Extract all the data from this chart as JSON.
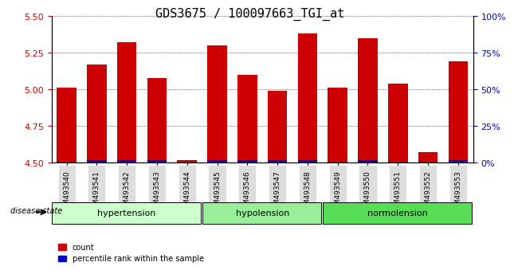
{
  "title": "GDS3675 / 100097663_TGI_at",
  "samples": [
    "GSM493540",
    "GSM493541",
    "GSM493542",
    "GSM493543",
    "GSM493544",
    "GSM493545",
    "GSM493546",
    "GSM493547",
    "GSM493548",
    "GSM493549",
    "GSM493550",
    "GSM493551",
    "GSM493552",
    "GSM493553"
  ],
  "count_values": [
    5.01,
    5.17,
    5.32,
    5.08,
    4.52,
    5.3,
    5.1,
    4.99,
    5.38,
    5.01,
    5.35,
    5.04,
    4.57,
    5.19
  ],
  "percentile_values": [
    1,
    2,
    2,
    2,
    1,
    2,
    2,
    2,
    2,
    1,
    2,
    1,
    1,
    2
  ],
  "ylim_left": [
    4.5,
    5.5
  ],
  "ylim_right": [
    0,
    100
  ],
  "yticks_left": [
    4.5,
    4.75,
    5.0,
    5.25,
    5.5
  ],
  "yticks_right": [
    0,
    25,
    50,
    75,
    100
  ],
  "groups": [
    {
      "label": "hypertension",
      "start": 0,
      "end": 4,
      "color": "#ccffcc"
    },
    {
      "label": "hypolension",
      "start": 5,
      "end": 8,
      "color": "#99ee99"
    },
    {
      "label": "normolension",
      "start": 9,
      "end": 13,
      "color": "#55dd55"
    }
  ],
  "bar_color_red": "#cc0000",
  "bar_color_blue": "#0000cc",
  "bar_width": 0.35,
  "legend_count": "count",
  "legend_percentile": "percentile rank within the sample",
  "disease_state_label": "disease state",
  "background_color": "#ffffff",
  "tick_label_color_left": "#cc0000",
  "tick_label_color_right": "#0000cc",
  "grid_color": "#000000",
  "title_fontsize": 11,
  "axis_fontsize": 8,
  "label_fontsize": 8
}
